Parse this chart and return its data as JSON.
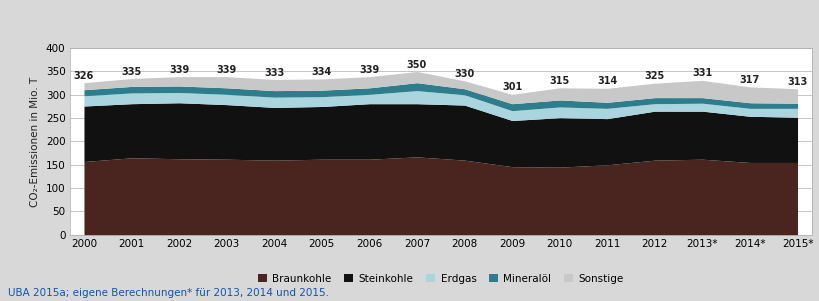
{
  "years": [
    2000,
    2001,
    2002,
    2003,
    2004,
    2005,
    2006,
    2007,
    2008,
    2009,
    2010,
    2011,
    2012,
    2013,
    2014,
    2015
  ],
  "year_labels": [
    "2000",
    "2001",
    "2002",
    "2003",
    "2004",
    "2005",
    "2006",
    "2007",
    "2008",
    "2009",
    "2010",
    "2011",
    "2012",
    "2013*",
    "2014*",
    "2015*"
  ],
  "totals": [
    326,
    335,
    339,
    339,
    333,
    334,
    339,
    350,
    330,
    301,
    315,
    314,
    325,
    331,
    317,
    313
  ],
  "braunkohle": [
    157,
    165,
    163,
    162,
    160,
    162,
    162,
    167,
    160,
    146,
    145,
    150,
    160,
    162,
    155,
    155
  ],
  "steinkohle": [
    119,
    116,
    120,
    117,
    113,
    113,
    119,
    114,
    118,
    99,
    106,
    99,
    105,
    103,
    99,
    97
  ],
  "erdgas": [
    22,
    23,
    22,
    22,
    22,
    21,
    20,
    28,
    22,
    21,
    23,
    22,
    16,
    17,
    17,
    19
  ],
  "mineraloil": [
    13,
    14,
    14,
    14,
    14,
    14,
    14,
    17,
    13,
    15,
    15,
    13,
    13,
    12,
    12,
    11
  ],
  "sonstige": [
    15,
    17,
    20,
    24,
    24,
    24,
    24,
    24,
    17,
    20,
    26,
    30,
    31,
    37,
    34,
    31
  ],
  "colors": {
    "braunkohle": "#4a2520",
    "steinkohle": "#111111",
    "erdgas": "#aad4de",
    "mineraloil": "#2e7d8c",
    "sonstige": "#c8c8c8"
  },
  "ylabel": "CO₂-Emissionen in Mio. T",
  "ylim": [
    0,
    400
  ],
  "yticks": [
    0,
    50,
    100,
    150,
    200,
    250,
    300,
    350,
    400
  ],
  "legend_labels": [
    "Braunkohle",
    "Steinkohle",
    "Erdgas",
    "Mineralöl",
    "Sonstige"
  ],
  "footnote": "UBA 2015a; eigene Berechnungen* für 2013, 2014 und 2015.",
  "fig_background": "#d8d8d8",
  "plot_background": "#ffffff",
  "total_fontsize": 7.0,
  "total_fontweight": "bold",
  "axis_fontsize": 7.5
}
